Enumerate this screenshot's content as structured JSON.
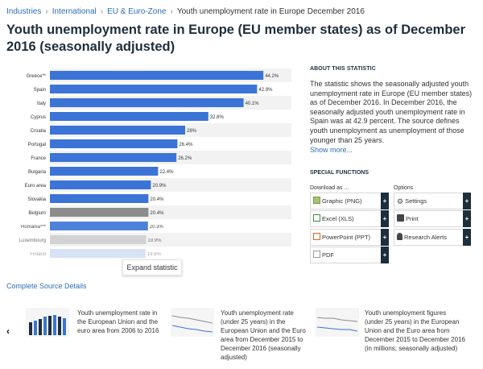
{
  "breadcrumb": {
    "items": [
      "Industries",
      "International",
      "EU & Euro-Zone",
      "Youth unemployment rate in Europe December 2016"
    ],
    "separator": "›"
  },
  "page_title": "Youth unemployment rate in Europe (EU member states) as of December 2016 (seasonally adjusted)",
  "chart_data": {
    "type": "bar",
    "orientation": "horizontal",
    "title": "",
    "xlabel": "",
    "ylabel": "",
    "xlim": [
      0,
      50
    ],
    "grid": false,
    "categories": [
      "Greece**",
      "Spain",
      "Italy",
      "Cyprus",
      "Croatia",
      "Portugal",
      "France",
      "Bulgaria",
      "Euro area",
      "Slovakia",
      "Belgium",
      "Romania***",
      "Luxembourg",
      "Finland"
    ],
    "values": [
      44.2,
      42.9,
      40.1,
      32.8,
      28,
      26.4,
      26.2,
      22.4,
      20.9,
      20.4,
      20.4,
      20.3,
      19.9,
      19.8
    ],
    "value_labels": [
      "44.2%",
      "42.9%",
      "40.1%",
      "32.8%",
      "28%",
      "26.4%",
      "26.2%",
      "22.4%",
      "20.9%",
      "20.4%",
      "20.4%",
      "20.3%",
      "19.9%",
      "19.8%"
    ],
    "bar_colors": [
      "#3b74d6",
      "#3b74d6",
      "#3b74d6",
      "#3b74d6",
      "#3b74d6",
      "#3b74d6",
      "#3b74d6",
      "#3b74d6",
      "#3b74d6",
      "#3b74d6",
      "#8c8c8c",
      "#3b74d6",
      "#c4c4c4",
      "#a7bfe9"
    ]
  },
  "expand_label": "Expand statistic",
  "source_link": "Complete Source Details",
  "about": {
    "heading": "ABOUT THIS STATISTIC",
    "text": "The statistic shows the seasonally adjusted youth unemployment rate in Europe (EU member states) as of December 2016. In December 2016, the seasonally adjusted youth unemployment rate in Spain was at 42.9 percent. The source defines youth unemployment as unemployment of those younger than 25 years.",
    "more": "Show more..."
  },
  "special_functions": {
    "heading": "SPECIAL FUNCTIONS",
    "download_heading": "Download as ...",
    "options_heading": "Options",
    "download": [
      "Graphic (PNG)",
      "Excel (XLS)",
      "PowerPoint (PPT)",
      "PDF"
    ],
    "options": [
      "Settings",
      "Print",
      "Research Alerts"
    ],
    "plus": "+"
  },
  "related": [
    "Youth unemployment rate in the European Union and the euro area from 2006 to 2016",
    "Youth unemployment rate (under 25 years) in the European Union and the Euro area from December 2015 to December 2016 (seasonally adjusted)",
    "Youth unemployment figures (under 25 years) in the European Union and the Euro area from December 2015 to December 2016 (in millions; seasonally adjusted)"
  ],
  "carousel_prev": "‹"
}
